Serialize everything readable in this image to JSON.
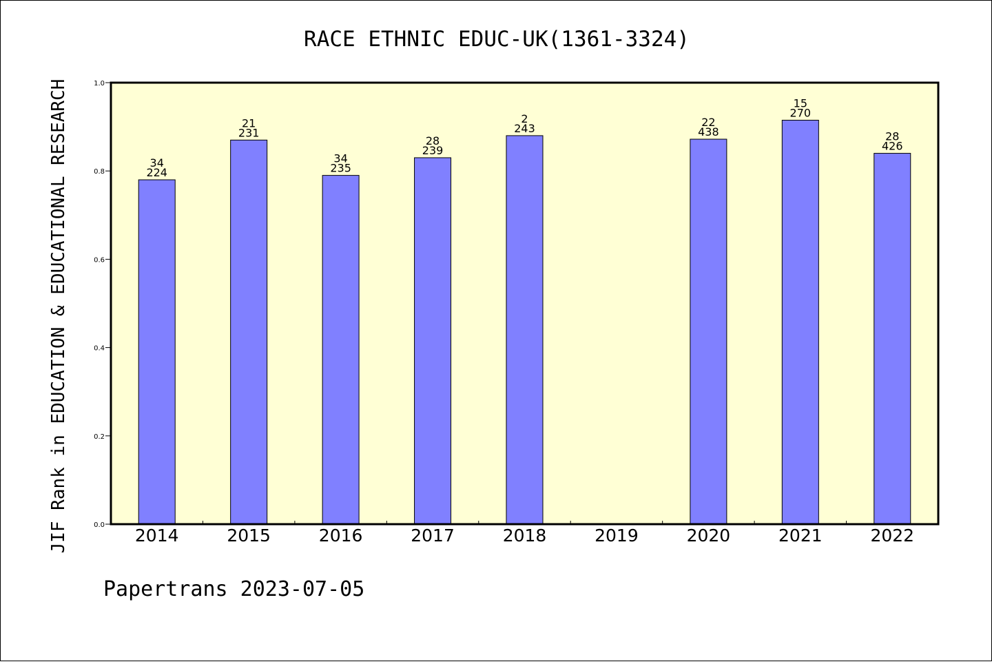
{
  "footer": "Papertrans 2023-07-05",
  "colors": {
    "plot_bg": "#ffffd5",
    "bar": "#8080ff",
    "bar_stroke": "#000000"
  },
  "chart_data": {
    "type": "bar",
    "title": "RACE ETHNIC EDUC-UK(1361-3324)",
    "xlabel": "",
    "ylabel": "JIF Rank in EDUCATION & EDUCATIONAL RESEARCH",
    "ylim": [
      0,
      1.0
    ],
    "yticks": [
      "0.0",
      "0.2",
      "0.4",
      "0.6",
      "0.8",
      "1.0"
    ],
    "grid": false,
    "categories": [
      "2014",
      "2015",
      "2016",
      "2017",
      "2018",
      "2019",
      "2020",
      "2021",
      "2022"
    ],
    "values": [
      0.78,
      0.87,
      0.79,
      0.83,
      0.88,
      null,
      0.872,
      0.915,
      0.84
    ],
    "rank_labels": [
      "34",
      "21",
      "34",
      "28",
      "2",
      "",
      "22",
      "15",
      "28"
    ],
    "total_labels": [
      "224",
      "231",
      "235",
      "239",
      "243",
      "",
      "438",
      "270",
      "426"
    ]
  }
}
